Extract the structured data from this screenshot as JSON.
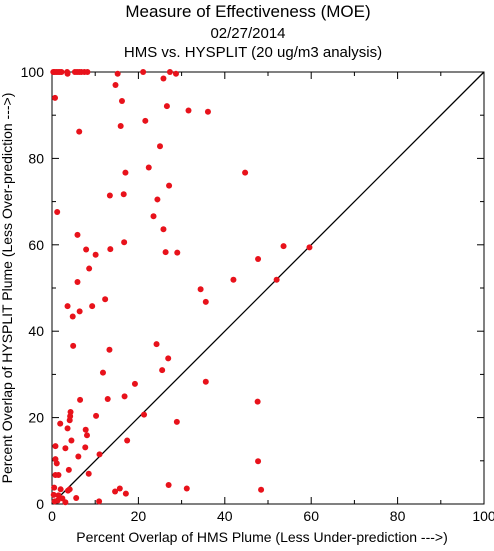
{
  "chart_data": {
    "type": "scatter",
    "title": "Measure of Effectiveness (MOE)",
    "subtitle": "02/27/2014",
    "subtitle2": "HMS vs. HYSPLIT  (20 ug/m3 analysis)",
    "xlabel": "Percent Overlap of HMS Plume (Less Under-prediction --->)",
    "ylabel": "Percent Overlap of HYSPLIT Plume (Less Over-prediction --->)",
    "xlim": [
      0,
      100
    ],
    "ylim": [
      0,
      100
    ],
    "xticks": [
      "0",
      "20",
      "40",
      "60",
      "80",
      "100"
    ],
    "yticks": [
      "0",
      "20",
      "40",
      "60",
      "80",
      "100"
    ],
    "grid": false,
    "reference_line": [
      [
        0,
        0
      ],
      [
        100,
        100
      ]
    ],
    "point_color": "#e8121b",
    "line_color": "#000000",
    "points": [
      [
        0.3,
        100
      ],
      [
        0.6,
        100
      ],
      [
        1.0,
        100
      ],
      [
        1.4,
        100
      ],
      [
        1.8,
        100
      ],
      [
        2.2,
        100
      ],
      [
        3.5,
        100
      ],
      [
        3.6,
        99.6
      ],
      [
        5.3,
        100
      ],
      [
        5.8,
        100
      ],
      [
        6.3,
        100
      ],
      [
        6.8,
        100
      ],
      [
        7.5,
        100
      ],
      [
        8.2,
        100
      ],
      [
        15.2,
        99.6
      ],
      [
        21.1,
        100
      ],
      [
        27.3,
        100
      ],
      [
        28.7,
        99.6
      ],
      [
        25.8,
        98.5
      ],
      [
        14.7,
        97.0
      ],
      [
        16.2,
        93.3
      ],
      [
        26.6,
        92.1
      ],
      [
        31.6,
        91.1
      ],
      [
        36.1,
        90.8
      ],
      [
        0.7,
        94.0
      ],
      [
        21.6,
        88.7
      ],
      [
        15.9,
        87.5
      ],
      [
        6.3,
        86.2
      ],
      [
        25.0,
        82.8
      ],
      [
        22.4,
        77.9
      ],
      [
        17.0,
        76.7
      ],
      [
        44.7,
        76.7
      ],
      [
        27.1,
        73.7
      ],
      [
        13.4,
        71.4
      ],
      [
        16.6,
        71.7
      ],
      [
        24.4,
        70.5
      ],
      [
        23.5,
        66.6
      ],
      [
        1.2,
        67.6
      ],
      [
        25.8,
        63.6
      ],
      [
        5.9,
        62.3
      ],
      [
        16.7,
        60.6
      ],
      [
        53.6,
        59.7
      ],
      [
        59.6,
        59.4
      ],
      [
        13.5,
        59.0
      ],
      [
        7.9,
        58.9
      ],
      [
        26.3,
        58.3
      ],
      [
        29.0,
        58.2
      ],
      [
        10.1,
        57.7
      ],
      [
        47.7,
        56.7
      ],
      [
        8.6,
        54.5
      ],
      [
        5.9,
        51.4
      ],
      [
        42.0,
        51.9
      ],
      [
        52.0,
        51.9
      ],
      [
        34.4,
        49.7
      ],
      [
        12.3,
        47.4
      ],
      [
        35.6,
        46.8
      ],
      [
        3.6,
        45.8
      ],
      [
        9.3,
        45.8
      ],
      [
        6.4,
        44.6
      ],
      [
        4.8,
        43.4
      ],
      [
        4.9,
        36.6
      ],
      [
        24.2,
        37.0
      ],
      [
        13.3,
        35.7
      ],
      [
        26.9,
        33.7
      ],
      [
        11.8,
        30.4
      ],
      [
        25.5,
        31.0
      ],
      [
        19.2,
        27.8
      ],
      [
        35.6,
        28.3
      ],
      [
        12.9,
        24.3
      ],
      [
        16.8,
        24.9
      ],
      [
        47.6,
        23.7
      ],
      [
        6.5,
        24.1
      ],
      [
        4.3,
        21.3
      ],
      [
        4.2,
        20.3
      ],
      [
        4.1,
        19.4
      ],
      [
        10.2,
        20.4
      ],
      [
        21.3,
        20.7
      ],
      [
        1.9,
        18.6
      ],
      [
        3.6,
        17.5
      ],
      [
        7.8,
        17.2
      ],
      [
        28.9,
        19.0
      ],
      [
        4.5,
        14.7
      ],
      [
        8.1,
        15.9
      ],
      [
        17.4,
        14.7
      ],
      [
        0.8,
        13.4
      ],
      [
        3.1,
        12.9
      ],
      [
        7.7,
        13.1
      ],
      [
        11.0,
        11.5
      ],
      [
        6.1,
        11.0
      ],
      [
        0.8,
        10.4
      ],
      [
        47.7,
        9.9
      ],
      [
        1.1,
        9.4
      ],
      [
        3.9,
        7.9
      ],
      [
        0.8,
        6.7
      ],
      [
        1.5,
        6.7
      ],
      [
        8.5,
        7.0
      ],
      [
        0.5,
        3.8
      ],
      [
        2.0,
        3.4
      ],
      [
        3.7,
        3.1
      ],
      [
        4.1,
        3.4
      ],
      [
        27.0,
        4.4
      ],
      [
        31.2,
        3.6
      ],
      [
        48.4,
        3.3
      ],
      [
        14.6,
        2.9
      ],
      [
        15.7,
        3.6
      ],
      [
        17.1,
        2.4
      ],
      [
        0.4,
        2.1
      ],
      [
        1.5,
        2.0
      ],
      [
        2.4,
        1.3
      ],
      [
        5.6,
        1.4
      ],
      [
        0.6,
        0.6
      ],
      [
        1.3,
        0.8
      ],
      [
        3.1,
        0.4
      ],
      [
        10.9,
        0.6
      ]
    ]
  }
}
